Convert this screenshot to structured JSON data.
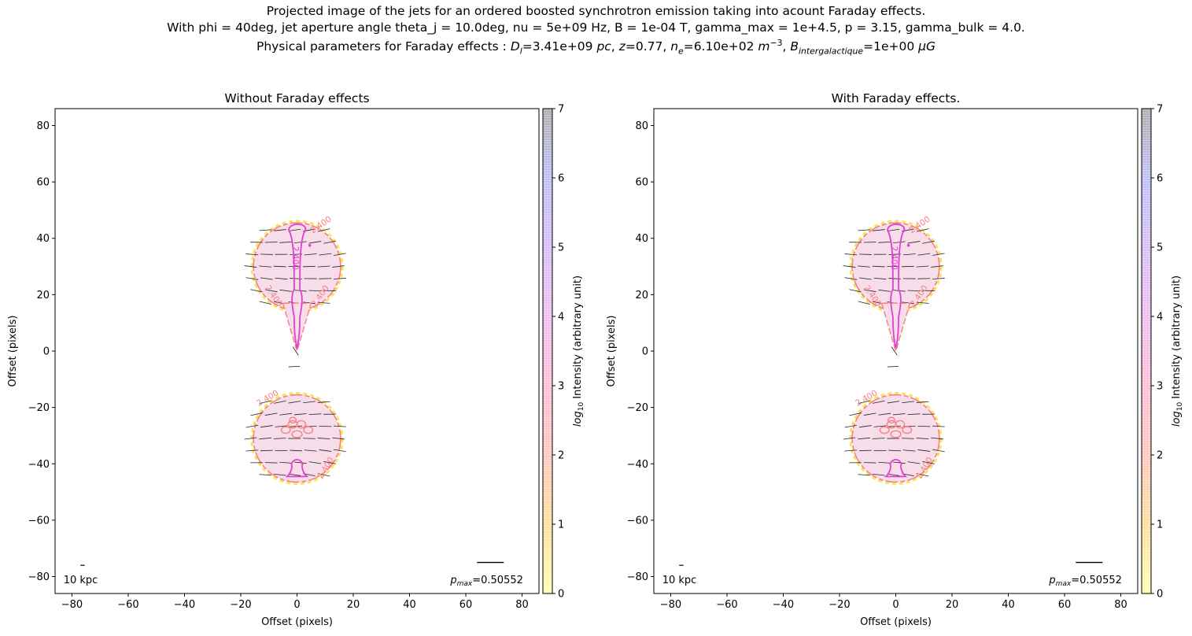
{
  "figure": {
    "title_line1": "Projected image of the jets for an ordered boosted synchrotron emission taking into acount Faraday effects.",
    "title_line2": "With phi = 40deg, jet aperture angle theta_j = 10.0deg, nu = 5e+09 Hz, B = 1e-04 T, gamma_max = 1e+4.5, p = 3.15, gamma_bulk = 4.0.",
    "title_line3": {
      "prefix": "Physical parameters for Faraday effects : ",
      "dl_symbol": "D",
      "dl_sub": "l",
      "dl_value": "=3.41e+09 ",
      "dl_unit": "pc",
      "z_symbol": "z",
      "z_value": "=0.77, ",
      "ne_symbol": "n",
      "ne_sub": "e",
      "ne_value": "=6.10e+02 ",
      "ne_unit": "m",
      "ne_exp": "−3",
      "b_symbol": "B",
      "b_sub": "intergalactique",
      "b_value": "=1e+00 ",
      "b_unit": "μG"
    }
  },
  "colors": {
    "pink_fill": "#f7dcea",
    "magenta_contour": "#e040d0",
    "salmon_contour": "#f78080",
    "yellow_edge": "#f5e040",
    "vector": "#222222"
  },
  "chart_data": [
    {
      "type": "heatmap",
      "title": "Without Faraday effects",
      "xlabel": "Offset (pixels)",
      "ylabel": "Offset (pixels)",
      "xlim": [
        -86,
        86
      ],
      "ylim": [
        -86,
        86
      ],
      "xticks": [
        -80,
        -60,
        -40,
        -20,
        0,
        20,
        40,
        60,
        80
      ],
      "yticks": [
        -80,
        -60,
        -40,
        -20,
        0,
        20,
        40,
        60,
        80
      ],
      "colorbar": {
        "label": "log10 Intensity (arbitrary unit)",
        "label_prefix": "log",
        "label_sub": "10",
        "label_rest": " Intensity (arbitrary unit)",
        "range": [
          0,
          7
        ],
        "ticks": [
          0,
          1,
          2,
          3,
          4,
          5,
          6,
          7
        ],
        "colors": [
          "#ffffb0",
          "#ffe0a0",
          "#ffc8c0",
          "#ffc0d8",
          "#f0c0f0",
          "#d8c0f8",
          "#c0c0f8",
          "#b0b0b0"
        ]
      },
      "lobes": [
        {
          "name": "upper-lobe",
          "cx": 0,
          "cy": 30,
          "r": 15.5
        },
        {
          "name": "lower-lobe",
          "cx": 0,
          "cy": -31,
          "r": 15.5
        }
      ],
      "jet_stem": {
        "x_top": 0,
        "y_top": 18,
        "y_bottom": 0
      },
      "contour_labels": [
        "2.400",
        "2.400",
        "2.400",
        "2.400",
        "2.400",
        "2.400"
      ],
      "scale_bar_label": "10 kpc",
      "pmax_symbol": "p",
      "pmax_sub": "max",
      "pmax_value": "=0.50552"
    },
    {
      "type": "heatmap",
      "title": "With Faraday effects.",
      "xlabel": "Offset (pixels)",
      "ylabel": "Offset (pixels)",
      "xlim": [
        -86,
        86
      ],
      "ylim": [
        -86,
        86
      ],
      "xticks": [
        -80,
        -60,
        -40,
        -20,
        0,
        20,
        40,
        60,
        80
      ],
      "yticks": [
        -80,
        -60,
        -40,
        -20,
        0,
        20,
        40,
        60,
        80
      ],
      "colorbar": {
        "label": "log10 Intensity (arbitrary unit)",
        "label_prefix": "log",
        "label_sub": "10",
        "label_rest": " Intensity (arbitrary unit)",
        "range": [
          0,
          7
        ],
        "ticks": [
          0,
          1,
          2,
          3,
          4,
          5,
          6,
          7
        ],
        "colors": [
          "#ffffb0",
          "#ffe0a0",
          "#ffc8c0",
          "#ffc0d8",
          "#f0c0f0",
          "#d8c0f8",
          "#c0c0f8",
          "#b0b0b0"
        ]
      },
      "lobes": [
        {
          "name": "upper-lobe",
          "cx": 0,
          "cy": 30,
          "r": 15.5
        },
        {
          "name": "lower-lobe",
          "cx": 0,
          "cy": -31,
          "r": 15.5
        }
      ],
      "jet_stem": {
        "x_top": 0,
        "y_top": 18,
        "y_bottom": 0
      },
      "contour_labels": [
        "2.400",
        "2.400",
        "2.400",
        "2.400",
        "2.400",
        "2.400"
      ],
      "scale_bar_label": "10 kpc",
      "pmax_symbol": "p",
      "pmax_sub": "max",
      "pmax_value": "=0.50552"
    }
  ]
}
